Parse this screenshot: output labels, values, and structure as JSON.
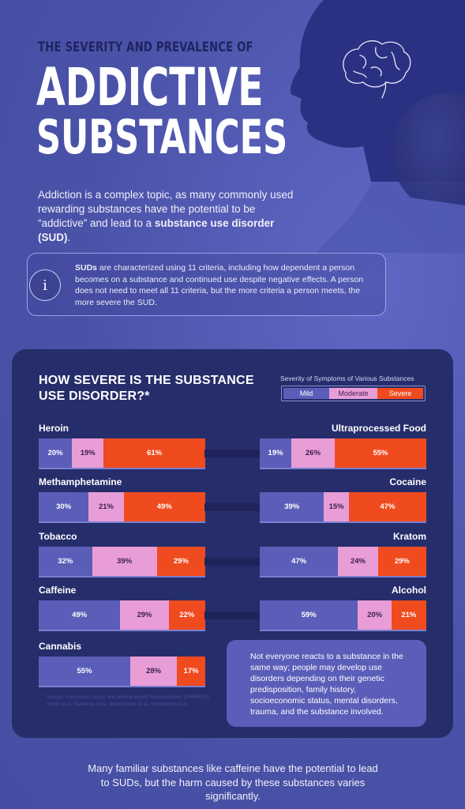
{
  "header": {
    "pre_title": "THE SEVERITY AND PREVALENCE OF",
    "title_line1": "ADDICTIVE",
    "title_line2": "SUBSTANCES"
  },
  "intro": {
    "text_before": "Addiction is a complex topic, as many commonly used rewarding substances have the potential to be “addictive” and lead to a ",
    "bold": "substance use disorder (SUD)",
    "text_after": "."
  },
  "info": {
    "icon": "info-icon",
    "icon_glyph": "i",
    "bold": "SUDs",
    "text": " are characterized using 11 criteria, including how dependent a person becomes on a substance and continued use despite negative effects. A person does not need to meet all 11 criteria, but the more criteria a person meets, the more severe the SUD."
  },
  "panel": {
    "title": "HOW SEVERE IS THE SUBSTANCE USE DISORDER?*",
    "legend_title": "Severity of Symptoms of Various Substances",
    "legend": [
      {
        "label": "Mild",
        "color": "#5a5eb8"
      },
      {
        "label": "Moderate",
        "color": "#e99dd6"
      },
      {
        "label": "Severe",
        "color": "#f04a1f"
      }
    ],
    "note": "Not everyone reacts to a substance in the same way; people may develop use disorders depending on their genetic predisposition, family history, socioeconomic status, mental disorders, trauma, and the substance involved.",
    "source": "Source: Substance Abuse and Mental Health Administration (SAMHSA), Smith et al, Sweeney et al, Wiedemann et al, Smrulewitz et al."
  },
  "chart_data": {
    "type": "bar",
    "stacked": true,
    "series_names": [
      "Mild",
      "Moderate",
      "Severe"
    ],
    "categories": [
      "Heroin",
      "Ultraprocessed Food",
      "Methamphetamine",
      "Cocaine",
      "Tobacco",
      "Kratom",
      "Caffeine",
      "Alcohol",
      "Cannabis"
    ],
    "rows": [
      {
        "name": "Heroin",
        "values": [
          20,
          19,
          61
        ],
        "labels": [
          "20%",
          "19%",
          "61%"
        ]
      },
      {
        "name": "Ultraprocessed Food",
        "values": [
          19,
          26,
          55
        ],
        "labels": [
          "19%",
          "26%",
          "55%"
        ]
      },
      {
        "name": "Methamphetamine",
        "values": [
          30,
          21,
          49
        ],
        "labels": [
          "30%",
          "21%",
          "49%"
        ]
      },
      {
        "name": "Cocaine",
        "values": [
          39,
          15,
          47
        ],
        "labels": [
          "39%",
          "15%",
          "47%"
        ]
      },
      {
        "name": "Tobacco",
        "values": [
          32,
          39,
          29
        ],
        "labels": [
          "32%",
          "39%",
          "29%"
        ]
      },
      {
        "name": "Kratom",
        "values": [
          47,
          24,
          29
        ],
        "labels": [
          "47%",
          "24%",
          "29%"
        ]
      },
      {
        "name": "Caffeine",
        "values": [
          49,
          29,
          22
        ],
        "labels": [
          "49%",
          "29%",
          "22%"
        ]
      },
      {
        "name": "Alcohol",
        "values": [
          59,
          20,
          21
        ],
        "labels": [
          "59%",
          "20%",
          "21%"
        ]
      },
      {
        "name": "Cannabis",
        "values": [
          55,
          28,
          17
        ],
        "labels": [
          "55%",
          "28%",
          "17%"
        ]
      }
    ]
  },
  "footer": {
    "text": "Many familiar substances like caffeine have the potential to lead to SUDs, but the harm caused by these substances varies significantly."
  },
  "art": {
    "icon": "head-silhouette-brain-icon"
  }
}
